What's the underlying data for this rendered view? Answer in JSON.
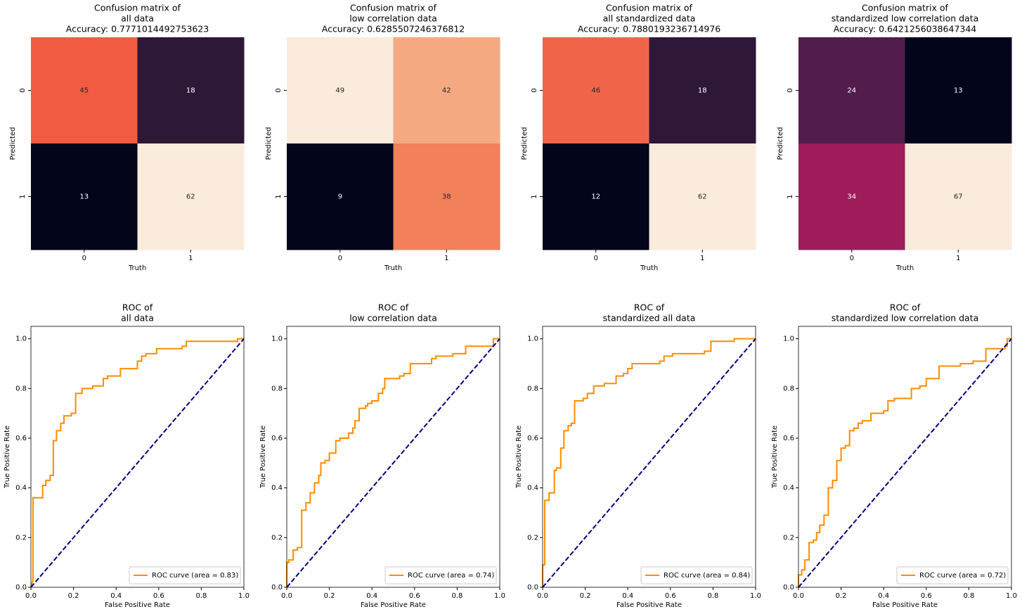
{
  "chart_data": [
    {
      "type": "heatmap",
      "title": [
        "Confusion matrix of",
        "all data",
        "Accuracy: 0.7771014492753623"
      ],
      "x_label": "Truth",
      "y_label": "Predicted",
      "x_categories": [
        "0",
        "1"
      ],
      "y_categories": [
        "0",
        "1"
      ],
      "values": [
        [
          45,
          18
        ],
        [
          13,
          62
        ]
      ],
      "cell_colors": [
        [
          "#f05b42",
          "#2d1838"
        ],
        [
          "#03051a",
          "#faebdd"
        ]
      ]
    },
    {
      "type": "heatmap",
      "title": [
        "Confusion matrix of",
        "low correlation data",
        "Accuracy: 0.6285507246376812"
      ],
      "x_label": "Truth",
      "y_label": "Predicted",
      "x_categories": [
        "0",
        "1"
      ],
      "y_categories": [
        "0",
        "1"
      ],
      "values": [
        [
          49,
          42
        ],
        [
          9,
          38
        ]
      ],
      "cell_colors": [
        [
          "#faebdd",
          "#f5a981"
        ],
        [
          "#03051a",
          "#f2805a"
        ]
      ]
    },
    {
      "type": "heatmap",
      "title": [
        "Confusion matrix of",
        "all standardized data",
        "Accuracy: 0.7880193236714976"
      ],
      "x_label": "Truth",
      "y_label": "Predicted",
      "x_categories": [
        "0",
        "1"
      ],
      "y_categories": [
        "0",
        "1"
      ],
      "values": [
        [
          46,
          18
        ],
        [
          12,
          62
        ]
      ],
      "cell_colors": [
        [
          "#f0654a",
          "#2e1739"
        ],
        [
          "#03051a",
          "#faebdd"
        ]
      ]
    },
    {
      "type": "heatmap",
      "title": [
        "Confusion matrix of",
        "standardized low correlation data",
        "Accuracy: 0.6421256038647344"
      ],
      "x_label": "Truth",
      "y_label": "Predicted",
      "x_categories": [
        "0",
        "1"
      ],
      "y_categories": [
        "0",
        "1"
      ],
      "values": [
        [
          24,
          13
        ],
        [
          34,
          67
        ]
      ],
      "cell_colors": [
        [
          "#521c4c",
          "#03051a"
        ],
        [
          "#9d1c59",
          "#faebdd"
        ]
      ]
    },
    {
      "type": "line",
      "title": [
        "ROC of",
        "all data"
      ],
      "x_label": "False Positive Rate",
      "y_label": "True Positive Rate",
      "xlim": [
        0,
        1
      ],
      "ylim": [
        0,
        1.05
      ],
      "legend": "lower right",
      "xticks": [
        {
          "value": 0,
          "label": "0.0"
        },
        {
          "value": 0.2,
          "label": "0.2"
        },
        {
          "value": 0.4,
          "label": "0.4"
        },
        {
          "value": 0.6,
          "label": "0.6"
        },
        {
          "value": 0.8,
          "label": "0.8"
        },
        {
          "value": 1,
          "label": "1.0"
        }
      ],
      "yticks": [
        {
          "value": 0,
          "label": "0.0"
        },
        {
          "value": 0.2,
          "label": "0.2"
        },
        {
          "value": 0.4,
          "label": "0.4"
        },
        {
          "value": 0.6,
          "label": "0.6"
        },
        {
          "value": 0.8,
          "label": "0.8"
        },
        {
          "value": 1,
          "label": "1.0"
        }
      ],
      "series": [
        {
          "name": "ROC curve (area = 0.83)",
          "color": "#ff8c00",
          "x": [
            0,
            0.01,
            0.01,
            0.055,
            0.055,
            0.07,
            0.07,
            0.09,
            0.09,
            0.105,
            0.105,
            0.12,
            0.12,
            0.14,
            0.14,
            0.155,
            0.155,
            0.19,
            0.19,
            0.21,
            0.21,
            0.24,
            0.24,
            0.29,
            0.29,
            0.34,
            0.34,
            0.36,
            0.36,
            0.42,
            0.42,
            0.5,
            0.5,
            0.52,
            0.52,
            0.54,
            0.54,
            0.59,
            0.59,
            0.71,
            0.71,
            0.73,
            0.73,
            0.97,
            0.97,
            1
          ],
          "values": [
            0,
            0.03,
            0.36,
            0.36,
            0.41,
            0.41,
            0.43,
            0.43,
            0.45,
            0.45,
            0.59,
            0.59,
            0.63,
            0.63,
            0.66,
            0.66,
            0.69,
            0.69,
            0.7,
            0.7,
            0.78,
            0.78,
            0.8,
            0.8,
            0.81,
            0.81,
            0.84,
            0.84,
            0.85,
            0.85,
            0.88,
            0.88,
            0.91,
            0.91,
            0.93,
            0.93,
            0.94,
            0.94,
            0.96,
            0.96,
            0.97,
            0.97,
            0.99,
            0.99,
            1,
            1
          ]
        },
        {
          "color": "#000080",
          "dash": true,
          "x": [
            0,
            1
          ],
          "values": [
            0,
            1
          ]
        }
      ]
    },
    {
      "type": "line",
      "title": [
        "ROC of",
        "low correlation data"
      ],
      "x_label": "False Positive Rate",
      "y_label": "True Positive Rate",
      "xlim": [
        0,
        1
      ],
      "ylim": [
        0,
        1.05
      ],
      "legend": "lower right",
      "xticks": [
        {
          "value": 0,
          "label": "0.0"
        },
        {
          "value": 0.2,
          "label": "0.2"
        },
        {
          "value": 0.4,
          "label": "0.4"
        },
        {
          "value": 0.6,
          "label": "0.6"
        },
        {
          "value": 0.8,
          "label": "0.8"
        },
        {
          "value": 1,
          "label": "1.0"
        }
      ],
      "yticks": [
        {
          "value": 0,
          "label": "0.0"
        },
        {
          "value": 0.2,
          "label": "0.2"
        },
        {
          "value": 0.4,
          "label": "0.4"
        },
        {
          "value": 0.6,
          "label": "0.6"
        },
        {
          "value": 0.8,
          "label": "0.8"
        },
        {
          "value": 1,
          "label": "1.0"
        }
      ],
      "series": [
        {
          "name": "ROC curve (area = 0.74)",
          "color": "#ff8c00",
          "x": [
            0,
            0,
            0.01,
            0.01,
            0.03,
            0.03,
            0.05,
            0.05,
            0.07,
            0.07,
            0.09,
            0.09,
            0.11,
            0.11,
            0.13,
            0.13,
            0.15,
            0.15,
            0.16,
            0.16,
            0.18,
            0.18,
            0.2,
            0.2,
            0.23,
            0.23,
            0.25,
            0.25,
            0.29,
            0.29,
            0.31,
            0.31,
            0.32,
            0.32,
            0.34,
            0.34,
            0.37,
            0.37,
            0.38,
            0.38,
            0.4,
            0.4,
            0.43,
            0.43,
            0.45,
            0.45,
            0.46,
            0.46,
            0.53,
            0.53,
            0.55,
            0.55,
            0.58,
            0.58,
            0.68,
            0.68,
            0.7,
            0.7,
            0.78,
            0.78,
            0.84,
            0.84,
            0.97,
            0.97,
            1
          ],
          "values": [
            0,
            0.1,
            0.1,
            0.11,
            0.11,
            0.15,
            0.15,
            0.16,
            0.16,
            0.31,
            0.31,
            0.34,
            0.34,
            0.38,
            0.38,
            0.42,
            0.42,
            0.45,
            0.45,
            0.5,
            0.5,
            0.51,
            0.51,
            0.54,
            0.54,
            0.59,
            0.59,
            0.6,
            0.6,
            0.62,
            0.62,
            0.64,
            0.64,
            0.67,
            0.67,
            0.72,
            0.72,
            0.73,
            0.73,
            0.74,
            0.74,
            0.75,
            0.75,
            0.78,
            0.78,
            0.8,
            0.8,
            0.84,
            0.84,
            0.85,
            0.85,
            0.86,
            0.86,
            0.9,
            0.9,
            0.92,
            0.92,
            0.93,
            0.93,
            0.94,
            0.94,
            0.97,
            0.97,
            1,
            1
          ]
        },
        {
          "color": "#000080",
          "dash": true,
          "x": [
            0,
            1
          ],
          "values": [
            0,
            1
          ]
        }
      ]
    },
    {
      "type": "line",
      "title": [
        "ROC of",
        "standardized all data"
      ],
      "x_label": "False Positive Rate",
      "y_label": "True Positive Rate",
      "xlim": [
        0,
        1
      ],
      "ylim": [
        0,
        1.05
      ],
      "legend": "lower right",
      "xticks": [
        {
          "value": 0,
          "label": "0.0"
        },
        {
          "value": 0.2,
          "label": "0.2"
        },
        {
          "value": 0.4,
          "label": "0.4"
        },
        {
          "value": 0.6,
          "label": "0.6"
        },
        {
          "value": 0.8,
          "label": "0.8"
        },
        {
          "value": 1,
          "label": "1.0"
        }
      ],
      "yticks": [
        {
          "value": 0,
          "label": "0.0"
        },
        {
          "value": 0.2,
          "label": "0.2"
        },
        {
          "value": 0.4,
          "label": "0.4"
        },
        {
          "value": 0.6,
          "label": "0.6"
        },
        {
          "value": 0.8,
          "label": "0.8"
        },
        {
          "value": 1,
          "label": "1.0"
        }
      ],
      "series": [
        {
          "name": "ROC curve (area = 0.84)",
          "color": "#ff8c00",
          "x": [
            0,
            0,
            0.01,
            0.01,
            0.03,
            0.03,
            0.055,
            0.055,
            0.065,
            0.065,
            0.085,
            0.085,
            0.1,
            0.1,
            0.12,
            0.12,
            0.135,
            0.135,
            0.15,
            0.15,
            0.19,
            0.19,
            0.21,
            0.21,
            0.24,
            0.24,
            0.29,
            0.29,
            0.345,
            0.345,
            0.38,
            0.38,
            0.4,
            0.4,
            0.42,
            0.42,
            0.55,
            0.55,
            0.57,
            0.57,
            0.61,
            0.61,
            0.76,
            0.76,
            0.79,
            0.79,
            0.9,
            0.9,
            1
          ],
          "values": [
            0,
            0.09,
            0.09,
            0.35,
            0.35,
            0.38,
            0.38,
            0.47,
            0.47,
            0.48,
            0.48,
            0.56,
            0.56,
            0.63,
            0.63,
            0.65,
            0.65,
            0.66,
            0.66,
            0.75,
            0.75,
            0.76,
            0.76,
            0.78,
            0.78,
            0.81,
            0.81,
            0.82,
            0.82,
            0.85,
            0.85,
            0.86,
            0.86,
            0.88,
            0.88,
            0.9,
            0.9,
            0.91,
            0.91,
            0.93,
            0.93,
            0.94,
            0.94,
            0.95,
            0.95,
            0.99,
            0.99,
            1,
            1
          ]
        },
        {
          "color": "#000080",
          "dash": true,
          "x": [
            0,
            1
          ],
          "values": [
            0,
            1
          ]
        }
      ]
    },
    {
      "type": "line",
      "title": [
        "ROC of",
        "standardized low correlation data"
      ],
      "x_label": "False Positive Rate",
      "y_label": "True Positive Rate",
      "xlim": [
        0,
        1
      ],
      "ylim": [
        0,
        1.05
      ],
      "legend": "lower right",
      "xticks": [
        {
          "value": 0,
          "label": "0.0"
        },
        {
          "value": 0.2,
          "label": "0.2"
        },
        {
          "value": 0.4,
          "label": "0.4"
        },
        {
          "value": 0.6,
          "label": "0.6"
        },
        {
          "value": 0.8,
          "label": "0.8"
        },
        {
          "value": 1,
          "label": "1.0"
        }
      ],
      "yticks": [
        {
          "value": 0,
          "label": "0.0"
        },
        {
          "value": 0.2,
          "label": "0.2"
        },
        {
          "value": 0.4,
          "label": "0.4"
        },
        {
          "value": 0.6,
          "label": "0.6"
        },
        {
          "value": 0.8,
          "label": "0.8"
        },
        {
          "value": 1,
          "label": "1.0"
        }
      ],
      "series": [
        {
          "name": "ROC curve (area = 0.72)",
          "color": "#ff8c00",
          "x": [
            0,
            0,
            0.015,
            0.015,
            0.03,
            0.03,
            0.05,
            0.05,
            0.07,
            0.07,
            0.085,
            0.085,
            0.1,
            0.1,
            0.12,
            0.12,
            0.14,
            0.14,
            0.16,
            0.16,
            0.18,
            0.18,
            0.2,
            0.2,
            0.22,
            0.22,
            0.24,
            0.24,
            0.26,
            0.26,
            0.28,
            0.28,
            0.3,
            0.3,
            0.34,
            0.34,
            0.4,
            0.4,
            0.42,
            0.42,
            0.45,
            0.45,
            0.53,
            0.53,
            0.57,
            0.57,
            0.6,
            0.6,
            0.66,
            0.66,
            0.76,
            0.76,
            0.82,
            0.82,
            0.88,
            0.88,
            0.97,
            0.97,
            0.98,
            0.98,
            1
          ],
          "values": [
            0,
            0.05,
            0.05,
            0.07,
            0.07,
            0.11,
            0.11,
            0.18,
            0.18,
            0.19,
            0.19,
            0.22,
            0.22,
            0.25,
            0.25,
            0.29,
            0.29,
            0.4,
            0.4,
            0.43,
            0.43,
            0.51,
            0.51,
            0.56,
            0.56,
            0.57,
            0.57,
            0.63,
            0.63,
            0.64,
            0.64,
            0.66,
            0.66,
            0.67,
            0.67,
            0.7,
            0.7,
            0.71,
            0.71,
            0.75,
            0.75,
            0.76,
            0.76,
            0.8,
            0.8,
            0.81,
            0.81,
            0.84,
            0.84,
            0.89,
            0.89,
            0.9,
            0.9,
            0.91,
            0.91,
            0.96,
            0.96,
            0.97,
            0.97,
            1,
            1
          ]
        },
        {
          "color": "#000080",
          "dash": true,
          "x": [
            0,
            1
          ],
          "values": [
            0,
            1
          ]
        }
      ]
    }
  ]
}
